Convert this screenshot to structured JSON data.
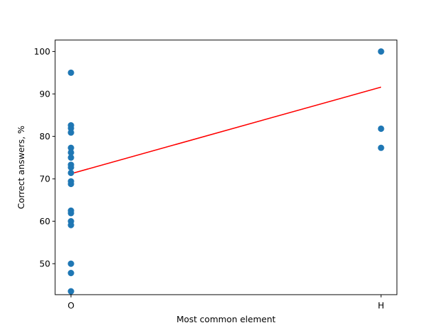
{
  "chart_data": {
    "type": "scatter",
    "title": "",
    "xlabel": "Most common element",
    "ylabel": "Correct answers, %",
    "categories": [
      "O",
      "H"
    ],
    "ylim": [
      42.7,
      102.7
    ],
    "yticks": [
      50,
      60,
      70,
      80,
      90,
      100
    ],
    "grid": false,
    "legend": "none",
    "colors": {
      "points": "#1f77b4",
      "trend_line": "#ff0000"
    },
    "series": [
      {
        "kind": "points",
        "points": [
          {
            "x": "O",
            "y": 95.0
          },
          {
            "x": "O",
            "y": 82.6
          },
          {
            "x": "O",
            "y": 81.9
          },
          {
            "x": "O",
            "y": 80.9
          },
          {
            "x": "O",
            "y": 77.3
          },
          {
            "x": "O",
            "y": 76.2
          },
          {
            "x": "O",
            "y": 75.0
          },
          {
            "x": "O",
            "y": 73.3
          },
          {
            "x": "O",
            "y": 72.7
          },
          {
            "x": "O",
            "y": 71.4
          },
          {
            "x": "O",
            "y": 69.4
          },
          {
            "x": "O",
            "y": 68.8
          },
          {
            "x": "O",
            "y": 62.5
          },
          {
            "x": "O",
            "y": 61.9
          },
          {
            "x": "O",
            "y": 60.0
          },
          {
            "x": "O",
            "y": 59.1
          },
          {
            "x": "O",
            "y": 50.0
          },
          {
            "x": "O",
            "y": 47.8
          },
          {
            "x": "O",
            "y": 43.5
          },
          {
            "x": "H",
            "y": 100.0
          },
          {
            "x": "H",
            "y": 81.8
          },
          {
            "x": "H",
            "y": 77.3
          }
        ]
      },
      {
        "kind": "trend_line",
        "points": [
          {
            "x": "O",
            "y": 71.2
          },
          {
            "x": "H",
            "y": 91.6
          }
        ]
      }
    ]
  }
}
